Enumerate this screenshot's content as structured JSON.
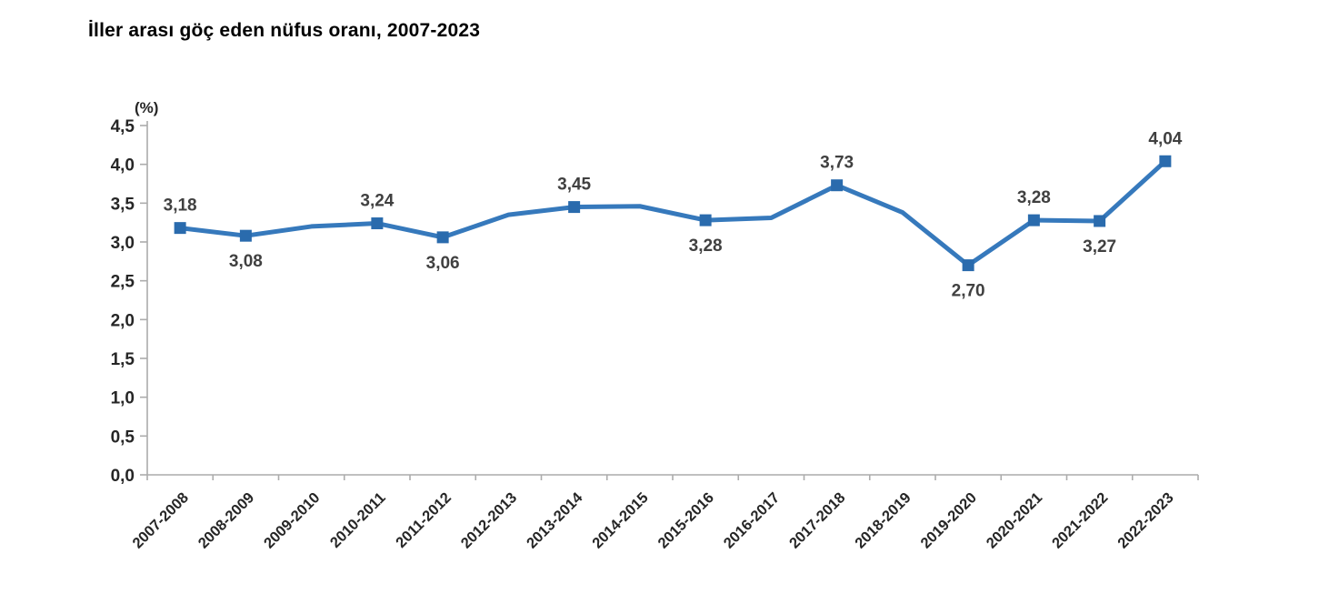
{
  "chart": {
    "title": "İller arası göç eden nüfus oranı, 2007-2023",
    "unit_label": "(%)"
  },
  "chart_data": {
    "type": "line",
    "title": "İller arası göç eden nüfus oranı, 2007-2023",
    "xlabel": "",
    "ylabel": "(%)",
    "ylim": [
      0,
      4.5
    ],
    "y_tick_step": 0.5,
    "y_tick_labels_top_down": [
      "4,5",
      "4,0",
      "3,5",
      "3,0",
      "2,5",
      "2,0",
      "1,5",
      "1,0",
      "0,5",
      "0,0"
    ],
    "grid": false,
    "legend": "none",
    "categories": [
      "2007-2008",
      "2008-2009",
      "2009-2010",
      "2010-2011",
      "2011-2012",
      "2012-2013",
      "2013-2014",
      "2014-2015",
      "2015-2016",
      "2016-2017",
      "2017-2018",
      "2018-2019",
      "2019-2020",
      "2020-2021",
      "2021-2022",
      "2022-2023"
    ],
    "series": [
      {
        "name": "İller arası göç eden nüfus oranı (%)",
        "values": [
          3.18,
          3.08,
          3.2,
          3.24,
          3.06,
          3.35,
          3.45,
          3.46,
          3.28,
          3.31,
          3.73,
          3.38,
          2.7,
          3.28,
          3.27,
          4.04
        ],
        "data_labels": [
          {
            "text": "3,18",
            "position": "above"
          },
          {
            "text": "3,08",
            "position": "below"
          },
          null,
          {
            "text": "3,24",
            "position": "above"
          },
          {
            "text": "3,06",
            "position": "below"
          },
          null,
          {
            "text": "3,45",
            "position": "above"
          },
          null,
          {
            "text": "3,28",
            "position": "below"
          },
          null,
          {
            "text": "3,73",
            "position": "above"
          },
          null,
          {
            "text": "2,70",
            "position": "below"
          },
          {
            "text": "3,28",
            "position": "above"
          },
          {
            "text": "3,27",
            "position": "below"
          },
          {
            "text": "4,04",
            "position": "above"
          }
        ]
      }
    ],
    "colors": {
      "line": "#3679BC",
      "marker": "#2A6BAD",
      "data_label": "#404040",
      "axis_line": "#ACACAC",
      "axis_text": "#262626",
      "title_text": "#000000",
      "background": "#FFFFFF"
    }
  }
}
